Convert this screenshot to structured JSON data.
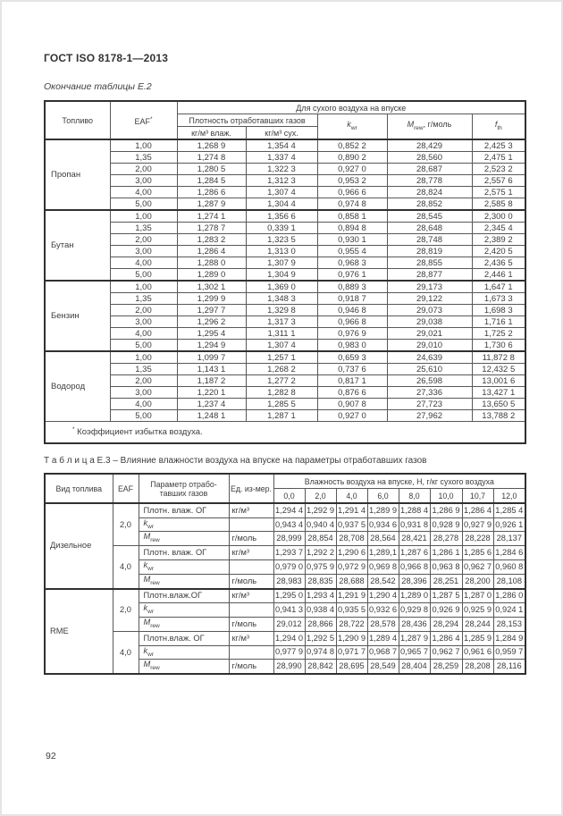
{
  "page": {
    "doc_header": "ГОСТ ISO 8178-1—2013",
    "page_number": "92"
  },
  "table_e2": {
    "caption": "Окончание таблицы Е.2",
    "header": {
      "fuel": "Топливо",
      "eaf": "EAF",
      "eaf_mark": "*",
      "dry_air_span": "Для сухого воздуха на впуске",
      "density_span": "Плотность отработавших газов",
      "wet": "кг/м³ влаж.",
      "dry": "кг/м³ сух.",
      "kwr": {
        "it": "k",
        "sub": "wr"
      },
      "mrew": {
        "it": "M",
        "sub": "rew",
        "rest": ", г/моль"
      },
      "fth": {
        "it": "f",
        "sub": "th"
      }
    },
    "groups": [
      {
        "fuel": "Пропан",
        "rows": [
          {
            "eaf": "1,00",
            "values": [
              "1,268 9",
              "1,354 4",
              "0,852 2",
              "28,429",
              "2,425 3"
            ]
          },
          {
            "eaf": "1,35",
            "values": [
              "1,274 8",
              "1,337 4",
              "0,890 2",
              "28,560",
              "2,475 1"
            ]
          },
          {
            "eaf": "2,00",
            "values": [
              "1,280 5",
              "1,322 3",
              "0,927 0",
              "28,687",
              "2,523 2"
            ]
          },
          {
            "eaf": "3,00",
            "values": [
              "1,284 5",
              "1,312 3",
              "0,953 2",
              "28,778",
              "2,557 6"
            ]
          },
          {
            "eaf": "4,00",
            "values": [
              "1,286 6",
              "1,307 4",
              "0,966 6",
              "28,824",
              "2,575 1"
            ]
          },
          {
            "eaf": "5,00",
            "values": [
              "1,287 9",
              "1,304 4",
              "0,974 8",
              "28,852",
              "2,585 8"
            ]
          }
        ]
      },
      {
        "fuel": "Бутан",
        "rows": [
          {
            "eaf": "1,00",
            "values": [
              "1,274 1",
              "1,356 6",
              "0,858 1",
              "28,545",
              "2,300 0"
            ]
          },
          {
            "eaf": "1,35",
            "values": [
              "1,278 7",
              "0,339 1",
              "0,894 8",
              "28,648",
              "2,345 4"
            ]
          },
          {
            "eaf": "2,00",
            "values": [
              "1,283 2",
              "1,323 5",
              "0,930 1",
              "28,748",
              "2,389 2"
            ]
          },
          {
            "eaf": "3,00",
            "values": [
              "1,286 4",
              "1,313 0",
              "0,955 4",
              "28,819",
              "2,420 5"
            ]
          },
          {
            "eaf": "4,00",
            "values": [
              "1,288 0",
              "1,307 9",
              "0,968 3",
              "28,855",
              "2,436 5"
            ]
          },
          {
            "eaf": "5,00",
            "values": [
              "1,289 0",
              "1,304 9",
              "0,976 1",
              "28,877",
              "2,446 1"
            ]
          }
        ]
      },
      {
        "fuel": "Бензин",
        "rows": [
          {
            "eaf": "1,00",
            "values": [
              "1,302 1",
              "1,369 0",
              "0,889 3",
              "29,173",
              "1,647 1"
            ]
          },
          {
            "eaf": "1,35",
            "values": [
              "1,299 9",
              "1,348 3",
              "0,918 7",
              "29,122",
              "1,673 3"
            ]
          },
          {
            "eaf": "2,00",
            "values": [
              "1,297 7",
              "1,329 8",
              "0,946 8",
              "29,073",
              "1,698 3"
            ]
          },
          {
            "eaf": "3,00",
            "values": [
              "1,296 2",
              "1,317 3",
              "0,966 8",
              "29,038",
              "1,716 1"
            ]
          },
          {
            "eaf": "4,00",
            "values": [
              "1,295 4",
              "1,311 1",
              "0,976 9",
              "29,021",
              "1,725 2"
            ]
          },
          {
            "eaf": "5,00",
            "values": [
              "1,294 9",
              "1,307 4",
              "0,983 0",
              "29,010",
              "1,730 6"
            ]
          }
        ]
      },
      {
        "fuel": "Водород",
        "rows": [
          {
            "eaf": "1,00",
            "values": [
              "1,099 7",
              "1,257 1",
              "0,659 3",
              "24,639",
              "11,872 8"
            ]
          },
          {
            "eaf": "1,35",
            "values": [
              "1,143 1",
              "1,268 2",
              "0,737 6",
              "25,610",
              "12,432 5"
            ]
          },
          {
            "eaf": "2,00",
            "values": [
              "1,187 2",
              "1,277 2",
              "0,817 1",
              "26,598",
              "13,001 6"
            ]
          },
          {
            "eaf": "3,00",
            "values": [
              "1,220 1",
              "1,282 8",
              "0,876 6",
              "27,336",
              "13,427 1"
            ]
          },
          {
            "eaf": "4,00",
            "values": [
              "1,237 4",
              "1,285 5",
              "0,907 8",
              "27,723",
              "13,650 5"
            ]
          },
          {
            "eaf": "5,00",
            "values": [
              "1,248 1",
              "1,287 1",
              "0,927 0",
              "27,962",
              "13,788 2"
            ]
          }
        ]
      }
    ],
    "footnote_mark": "*",
    "footnote": "Коэффициент избытка воздуха."
  },
  "table_e3": {
    "caption": "Т а б л и ц а  Е.3 – Влияние влажности воздуха на впуске на параметры отработавших газов",
    "header": {
      "fuel": "Вид топлива",
      "eaf": "EAF",
      "param": "Параметр отрабо-тавших газов",
      "unit": "Ед. из-мер.",
      "humidity_span": "Влажность воздуха на впуске, Н, г/кг сухого воздуха",
      "humidity_cols": [
        "0,0",
        "2,0",
        "4,0",
        "6,0",
        "8,0",
        "10,0",
        "10,7",
        "12,0"
      ]
    },
    "groups": [
      {
        "fuel": "Дизельное",
        "subgroups": [
          {
            "eaf": "2,0",
            "rows": [
              {
                "label": "Плотн. влаж. ОГ",
                "unit": "кг/м³",
                "values": [
                  "1,294 4",
                  "1,292 9",
                  "1,291 4",
                  "1,289 9",
                  "1,288 4",
                  "1,286 9",
                  "1,286 4",
                  "1,285 4"
                ]
              },
              {
                "label": {
                  "it": "k",
                  "sub": "wr"
                },
                "unit": "",
                "values": [
                  "0,943 4",
                  "0,940 4",
                  "0,937 5",
                  "0,934 6",
                  "0,931 8",
                  "0,928 9",
                  "0,927 9",
                  "0,926 1"
                ]
              },
              {
                "label": {
                  "it": "M",
                  "sub": "rew"
                },
                "unit": "г/моль",
                "values": [
                  "28,999",
                  "28,854",
                  "28,708",
                  "28,564",
                  "28,421",
                  "28,278",
                  "28,228",
                  "28,137"
                ]
              }
            ]
          },
          {
            "eaf": "4,0",
            "rows": [
              {
                "label": "Плотн. влаж. ОГ",
                "unit": "кг/м³",
                "values": [
                  "1,293 7",
                  "1,292 2",
                  "1,290 6",
                  "1,289,1",
                  "1,287 6",
                  "1,286 1",
                  "1,285 6",
                  "1,284 6"
                ]
              },
              {
                "label": {
                  "it": "k",
                  "sub": "wr"
                },
                "unit": "",
                "values": [
                  "0,979 0",
                  "0,975 9",
                  "0,972 9",
                  "0,969 8",
                  "0,966 8",
                  "0,963 8",
                  "0,962 7",
                  "0,960 8"
                ]
              },
              {
                "label": {
                  "it": "M",
                  "sub": "rew"
                },
                "unit": "г/моль",
                "values": [
                  "28,983",
                  "28,835",
                  "28,688",
                  "28,542",
                  "28,396",
                  "28,251",
                  "28,200",
                  "28,108"
                ]
              }
            ]
          }
        ]
      },
      {
        "fuel": "RME",
        "subgroups": [
          {
            "eaf": "2,0",
            "rows": [
              {
                "label": "Плотн.влаж.ОГ",
                "unit": "кг/м³",
                "values": [
                  "1,295 0",
                  "1,293 4",
                  "1,291 9",
                  "1,290 4",
                  "1,289 0",
                  "1,287 5",
                  "1,287 0",
                  "1,286 0"
                ]
              },
              {
                "label": {
                  "it": "k",
                  "sub": "wr"
                },
                "unit": "",
                "values": [
                  "0,941 3",
                  "0,938 4",
                  "0,935 5",
                  "0,932 6",
                  "0,929 8",
                  "0,926 9",
                  "0,925 9",
                  "0,924 1"
                ]
              },
              {
                "label": {
                  "it": "M",
                  "sub": "rew"
                },
                "unit": "г/моль",
                "values": [
                  "29,012",
                  "28,866",
                  "28,722",
                  "28,578",
                  "28,436",
                  "28,294",
                  "28,244",
                  "28,153"
                ]
              }
            ]
          },
          {
            "eaf": "4,0",
            "rows": [
              {
                "label": "Плотн.влаж. ОГ",
                "unit": "кг/м³",
                "values": [
                  "1,294 0",
                  "1,292 5",
                  "1,290 9",
                  "1,289 4",
                  "1,287 9",
                  "1,286 4",
                  "1,285 9",
                  "1,284 9"
                ]
              },
              {
                "label": {
                  "it": "k",
                  "sub": "wr"
                },
                "unit": "",
                "values": [
                  "0,977 9",
                  "0,974 8",
                  "0,971 7",
                  "0,968 7",
                  "0,965 7",
                  "0,962 7",
                  "0,961 6",
                  "0,959 7"
                ]
              },
              {
                "label": {
                  "it": "M",
                  "sub": "rew"
                },
                "unit": "г/моль",
                "values": [
                  "28,990",
                  "28,842",
                  "28,695",
                  "28,549",
                  "28,404",
                  "28,259",
                  "28,208",
                  "28,116"
                ]
              }
            ]
          }
        ]
      }
    ]
  }
}
